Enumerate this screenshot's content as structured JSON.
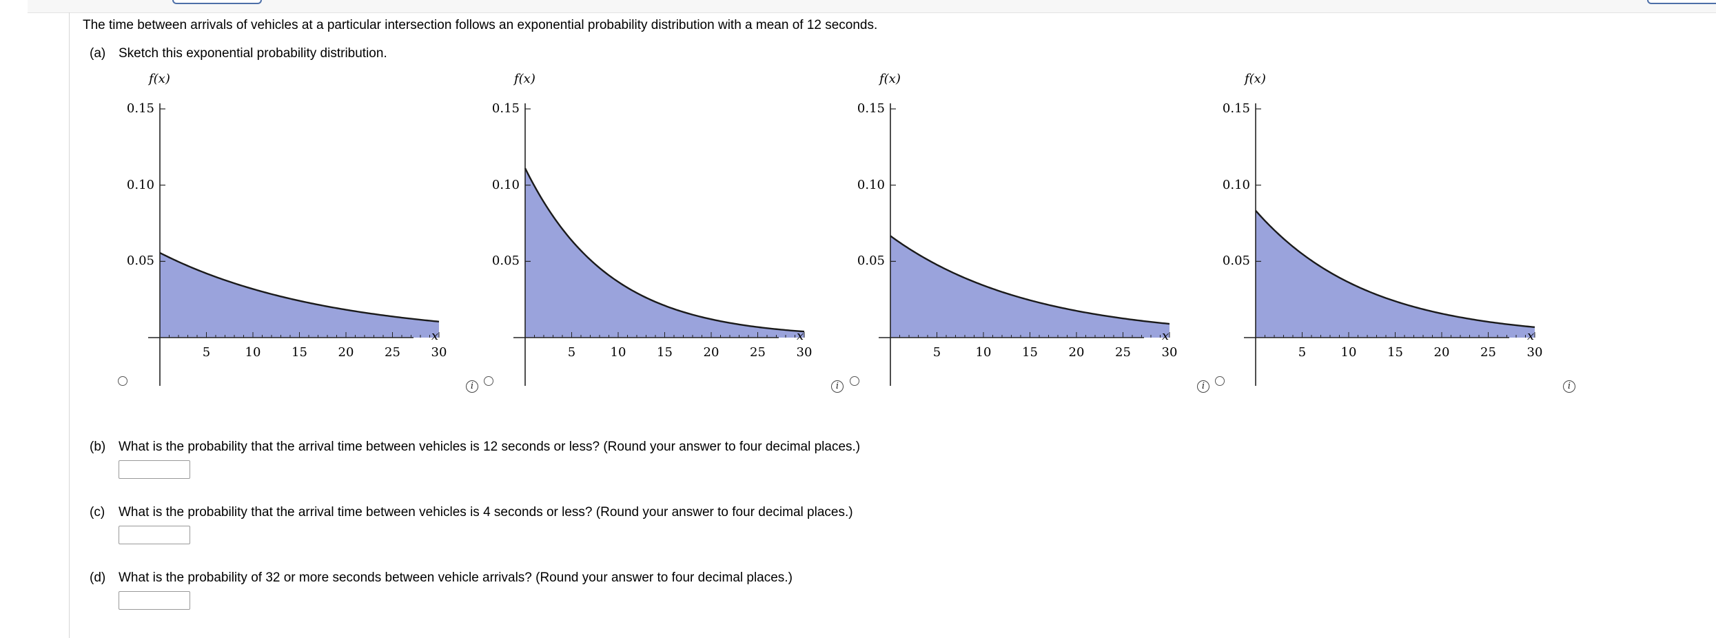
{
  "question": {
    "intro": "The time between arrivals of vehicles at a particular intersection follows an exponential probability distribution with a mean of 12 seconds.",
    "parts": [
      {
        "letter": "(a)",
        "text": "Sketch this exponential probability distribution."
      },
      {
        "letter": "(b)",
        "text": "What is the probability that the arrival time between vehicles is 12 seconds or less? (Round your answer to four decimal places.)",
        "answer": ""
      },
      {
        "letter": "(c)",
        "text": "What is the probability that the arrival time between vehicles is 4 seconds or less? (Round your answer to four decimal places.)",
        "answer": ""
      },
      {
        "letter": "(d)",
        "text": "What is the probability of 32 or more seconds between vehicle arrivals? (Round your answer to four decimal places.)",
        "answer": ""
      }
    ]
  },
  "graph_common": {
    "y_title": "f(x)",
    "x_title": "x",
    "y_ticks": [
      "0.15",
      "0.10",
      "0.05"
    ],
    "x_ticks": [
      "5",
      "10",
      "15",
      "20",
      "25",
      "30"
    ],
    "info_icon": "i",
    "fill_color": "#9aa3dc",
    "curve_color": "#1a1a1a"
  },
  "chart_data": [
    {
      "type": "area",
      "option": 1,
      "function": "f(x) = (1/18) e^(-x/18)",
      "x": [
        0,
        5,
        10,
        15,
        20,
        25,
        30
      ],
      "y": [
        0.0556,
        0.0421,
        0.0319,
        0.0242,
        0.0183,
        0.0139,
        0.0105
      ],
      "xlim": [
        0,
        30
      ],
      "ylim": [
        0,
        0.15
      ],
      "xlabel": "x",
      "ylabel": "f(x)",
      "selected": false
    },
    {
      "type": "area",
      "option": 2,
      "function": "f(x) = (1/9) e^(-x/9)",
      "x": [
        0,
        5,
        10,
        15,
        20,
        25,
        30
      ],
      "y": [
        0.1111,
        0.0638,
        0.0366,
        0.021,
        0.012,
        0.0069,
        0.004
      ],
      "xlim": [
        0,
        30
      ],
      "ylim": [
        0,
        0.15
      ],
      "xlabel": "x",
      "ylabel": "f(x)",
      "selected": false
    },
    {
      "type": "area",
      "option": 3,
      "function": "f(x) = (1/15) e^(-x/15)",
      "x": [
        0,
        5,
        10,
        15,
        20,
        25,
        30
      ],
      "y": [
        0.0667,
        0.0478,
        0.0342,
        0.0245,
        0.0176,
        0.0126,
        0.009
      ],
      "xlim": [
        0,
        30
      ],
      "ylim": [
        0,
        0.15
      ],
      "xlabel": "x",
      "ylabel": "f(x)",
      "selected": false
    },
    {
      "type": "area",
      "option": 4,
      "function": "f(x) = (1/12) e^(-x/12)",
      "x": [
        0,
        5,
        10,
        15,
        20,
        25,
        30
      ],
      "y": [
        0.0833,
        0.0549,
        0.0362,
        0.0239,
        0.0158,
        0.0103,
        0.0068
      ],
      "xlim": [
        0,
        30
      ],
      "ylim": [
        0,
        0.15
      ],
      "xlabel": "x",
      "ylabel": "f(x)",
      "selected": false
    }
  ]
}
